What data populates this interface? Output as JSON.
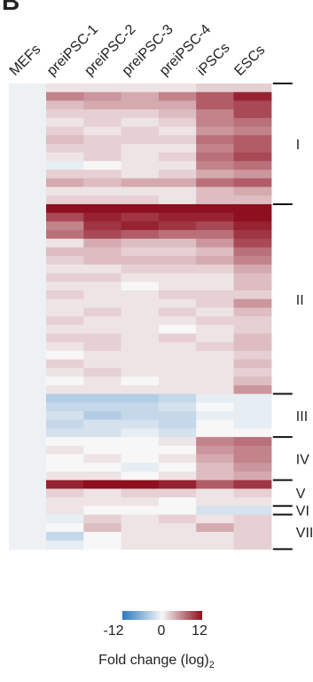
{
  "panel_label": "B",
  "colors": {
    "negative": "#2b79c1",
    "zero": "#f7f7f7",
    "positive": "#8e0f1f",
    "mefs_column": "#edf1f4"
  },
  "legend": {
    "ticks": [
      "-12",
      "0",
      "12"
    ],
    "title_main": "Fold change (log)",
    "title_sub": "2"
  },
  "chart_data": {
    "type": "heatmap",
    "title": "",
    "columns": [
      "MEFs",
      "preiPSC-1",
      "preiPSC-2",
      "preiPSC-3",
      "preiPSC-4",
      "iPSCs",
      "ESCs"
    ],
    "value_range": [
      -12,
      12
    ],
    "colorbar_label": "Fold change (log)2",
    "clusters": [
      {
        "label": "I",
        "start_row": 0,
        "end_row": 14
      },
      {
        "label": "II",
        "start_row": 14,
        "end_row": 36
      },
      {
        "label": "III",
        "start_row": 36,
        "end_row": 41
      },
      {
        "label": "IV",
        "start_row": 41,
        "end_row": 46
      },
      {
        "label": "V",
        "start_row": 46,
        "end_row": 49
      },
      {
        "label": "VI",
        "start_row": 49,
        "end_row": 50
      },
      {
        "label": "VII",
        "start_row": 50,
        "end_row": 54
      }
    ],
    "rows": [
      [
        0,
        1,
        1,
        1,
        1,
        2,
        2
      ],
      [
        0,
        6,
        5,
        4,
        6,
        8,
        11
      ],
      [
        0,
        3,
        4,
        4,
        4,
        8,
        9
      ],
      [
        0,
        2,
        2,
        2,
        3,
        6,
        9
      ],
      [
        0,
        1,
        2,
        1,
        2,
        6,
        7
      ],
      [
        0,
        2,
        1,
        2,
        1,
        5,
        6
      ],
      [
        0,
        3,
        2,
        2,
        2,
        7,
        8
      ],
      [
        0,
        2,
        2,
        1,
        1,
        6,
        8
      ],
      [
        0,
        1,
        2,
        1,
        2,
        7,
        9
      ],
      [
        0,
        -1,
        0,
        1,
        1,
        6,
        7
      ],
      [
        0,
        2,
        2,
        1,
        2,
        4,
        5
      ],
      [
        0,
        4,
        3,
        4,
        4,
        7,
        8
      ],
      [
        0,
        1,
        1,
        1,
        1,
        3,
        4
      ],
      [
        0,
        2,
        2,
        2,
        1,
        3,
        3
      ],
      [
        0,
        12,
        12,
        12,
        12,
        12,
        12
      ],
      [
        0,
        9,
        11,
        10,
        11,
        11,
        12
      ],
      [
        0,
        6,
        10,
        11,
        10,
        9,
        11
      ],
      [
        0,
        7,
        9,
        8,
        7,
        7,
        10
      ],
      [
        0,
        1,
        4,
        3,
        3,
        5,
        9
      ],
      [
        0,
        3,
        3,
        2,
        2,
        3,
        7
      ],
      [
        0,
        2,
        3,
        3,
        3,
        4,
        6
      ],
      [
        0,
        1,
        1,
        2,
        2,
        2,
        4
      ],
      [
        0,
        2,
        2,
        1,
        1,
        1,
        3
      ],
      [
        0,
        1,
        1,
        0,
        1,
        1,
        3
      ],
      [
        0,
        2,
        1,
        1,
        2,
        2,
        2
      ],
      [
        0,
        1,
        1,
        1,
        1,
        2,
        5
      ],
      [
        0,
        1,
        2,
        1,
        2,
        1,
        3
      ],
      [
        0,
        2,
        1,
        1,
        1,
        2,
        2
      ],
      [
        0,
        1,
        1,
        1,
        0,
        1,
        2
      ],
      [
        0,
        2,
        2,
        1,
        2,
        1,
        3
      ],
      [
        0,
        1,
        2,
        1,
        1,
        2,
        3
      ],
      [
        0,
        0,
        1,
        1,
        1,
        1,
        2
      ],
      [
        0,
        2,
        1,
        1,
        1,
        1,
        3
      ],
      [
        0,
        1,
        2,
        1,
        1,
        1,
        2
      ],
      [
        0,
        0,
        1,
        0,
        1,
        1,
        3
      ],
      [
        0,
        1,
        1,
        1,
        1,
        1,
        5
      ],
      [
        0,
        -4,
        -4,
        -4,
        -3,
        -1,
        -1
      ],
      [
        0,
        -3,
        -3,
        -3,
        -2,
        0,
        -1
      ],
      [
        0,
        -2,
        -4,
        -3,
        -3,
        -1,
        -1
      ],
      [
        0,
        -3,
        -2,
        -2,
        -3,
        0,
        -1
      ],
      [
        0,
        -2,
        -2,
        -1,
        -2,
        0,
        0
      ],
      [
        0,
        0,
        0,
        0,
        1,
        6,
        7
      ],
      [
        0,
        1,
        0,
        0,
        0,
        5,
        6
      ],
      [
        0,
        0,
        1,
        0,
        1,
        4,
        6
      ],
      [
        0,
        0,
        0,
        -1,
        0,
        3,
        5
      ],
      [
        0,
        1,
        1,
        0,
        1,
        3,
        4
      ],
      [
        0,
        11,
        12,
        12,
        11,
        8,
        10
      ],
      [
        0,
        2,
        1,
        2,
        2,
        1,
        2
      ],
      [
        0,
        1,
        1,
        1,
        0,
        1,
        1
      ],
      [
        0,
        1,
        0,
        0,
        0,
        -2,
        -2
      ],
      [
        0,
        -1,
        2,
        1,
        2,
        1,
        2
      ],
      [
        0,
        0,
        3,
        1,
        1,
        4,
        2
      ],
      [
        0,
        -3,
        0,
        1,
        1,
        1,
        2
      ],
      [
        0,
        -1,
        0,
        1,
        1,
        1,
        2
      ]
    ]
  }
}
